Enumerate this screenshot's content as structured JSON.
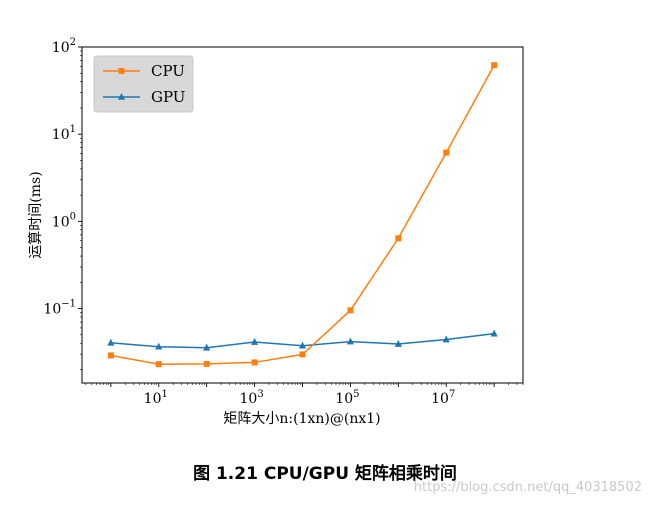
{
  "chart_data": {
    "type": "line",
    "title": "",
    "xlabel": "矩阵大小n:(1xn)@(nx1)",
    "ylabel": "运算时间(ms)",
    "xscale": "log",
    "yscale": "log",
    "xlim": [
      0.25,
      400000000
    ],
    "ylim": [
      0.014,
      100
    ],
    "x": [
      1,
      10,
      100,
      1000,
      10000,
      100000,
      1000000,
      10000000,
      100000000
    ],
    "series": [
      {
        "name": "CPU",
        "color": "#ff7f0e",
        "marker": "square",
        "values": [
          0.029,
          0.023,
          0.0232,
          0.0241,
          0.0298,
          0.0954,
          0.64,
          6.15,
          61.8
        ]
      },
      {
        "name": "GPU",
        "color": "#1f77b4",
        "marker": "triangle",
        "values": [
          0.0405,
          0.0365,
          0.0355,
          0.0413,
          0.0375,
          0.0418,
          0.0392,
          0.0441,
          0.0515
        ]
      }
    ],
    "xticks": [
      {
        "base": "10",
        "exp": "1",
        "value": 10
      },
      {
        "base": "10",
        "exp": "3",
        "value": 1000
      },
      {
        "base": "10",
        "exp": "5",
        "value": 100000
      },
      {
        "base": "10",
        "exp": "7",
        "value": 10000000
      }
    ],
    "yticks": [
      {
        "base": "10",
        "exp": "−1",
        "value": 0.1
      },
      {
        "base": "10",
        "exp": "0",
        "value": 1
      },
      {
        "base": "10",
        "exp": "1",
        "value": 10
      },
      {
        "base": "10",
        "exp": "2",
        "value": 100
      }
    ],
    "legend": "top-left"
  },
  "caption": "图  1.21 CPU/GPU 矩阵相乘时间",
  "watermark": "https://blog.csdn.net/qq_40318502"
}
